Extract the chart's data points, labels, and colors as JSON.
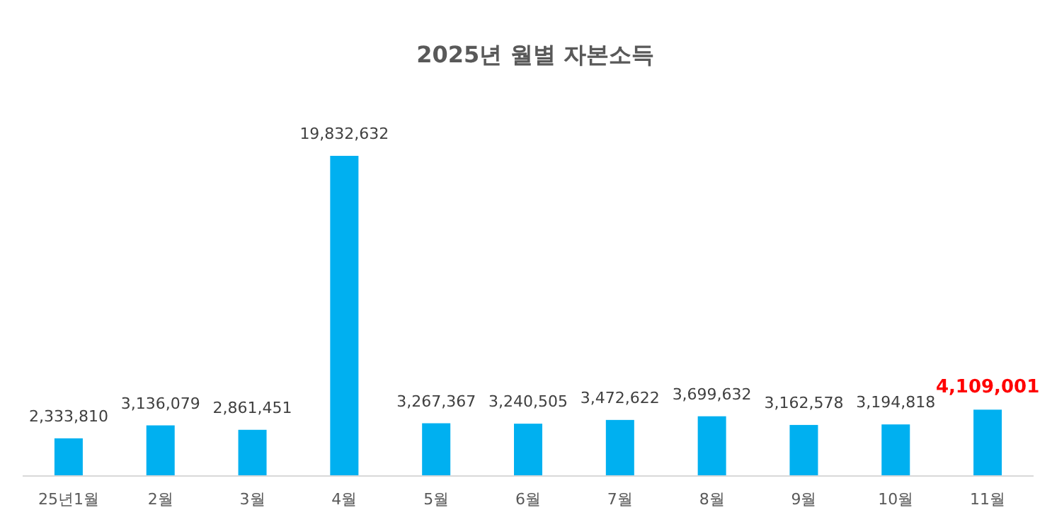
{
  "chart_data": {
    "type": "bar",
    "title": "2025년 월별 자본소득",
    "categories": [
      "25년1월",
      "2월",
      "3월",
      "4월",
      "5월",
      "6월",
      "7월",
      "8월",
      "9월",
      "10월",
      "11월"
    ],
    "values": [
      2333810,
      3136079,
      2861451,
      19832632,
      3267367,
      3240505,
      3472622,
      3699632,
      3162578,
      3194818,
      4109001
    ],
    "color": "#00b0f0",
    "value_labels": [
      "2,333,810",
      "3,136,079",
      "2,861,451",
      "19,832,632",
      "3,267,367",
      "3,240,505",
      "3,472,622",
      "3,699,632",
      "3,162,578",
      "3,194,818",
      "**4,109,001**"
    ],
    "tick_labels": "x"
  }
}
